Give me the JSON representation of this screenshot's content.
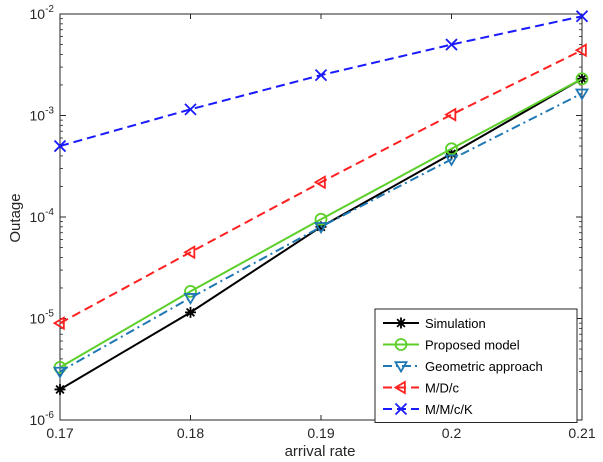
{
  "chart_data": {
    "type": "line",
    "title": "",
    "xlabel": "arrival rate",
    "ylabel": "Outage",
    "yscale": "log",
    "xlim": [
      0.17,
      0.21
    ],
    "ylim": [
      1e-06,
      0.01
    ],
    "x": [
      0.17,
      0.18,
      0.19,
      0.2,
      0.21
    ],
    "x_ticks": [
      "0.17",
      "0.18",
      "0.19",
      "0.2",
      "0.21"
    ],
    "y_ticks": [
      {
        "base": "10",
        "exp": "-6"
      },
      {
        "base": "10",
        "exp": "-5"
      },
      {
        "base": "10",
        "exp": "-4"
      },
      {
        "base": "10",
        "exp": "-3"
      },
      {
        "base": "10",
        "exp": "-2"
      }
    ],
    "grid": false,
    "legend_position": "bottom-right",
    "series": [
      {
        "name": "Simulation",
        "color": "#000000",
        "dash": "solid",
        "marker": "asterisk",
        "values": [
          2e-06,
          1.15e-05,
          8e-05,
          0.00042,
          0.0023
        ]
      },
      {
        "name": "Proposed model",
        "color": "#5ccf2a",
        "dash": "solid",
        "marker": "circle",
        "values": [
          3.3e-06,
          1.85e-05,
          9.5e-05,
          0.00047,
          0.0023
        ]
      },
      {
        "name": "Geometric approach",
        "color": "#1f78b4",
        "dash": "dashdot",
        "marker": "triangle-down",
        "values": [
          3e-06,
          1.6e-05,
          8e-05,
          0.00037,
          0.00165
        ]
      },
      {
        "name": "M/D/c",
        "color": "#ff2020",
        "dash": "dashed",
        "marker": "triangle-left",
        "values": [
          9e-06,
          4.5e-05,
          0.00022,
          0.00102,
          0.0044
        ]
      },
      {
        "name": "M/M/c/K",
        "color": "#1a1aff",
        "dash": "dashed",
        "marker": "x",
        "values": [
          0.0005,
          0.00115,
          0.0025,
          0.005,
          0.0095
        ]
      }
    ]
  }
}
